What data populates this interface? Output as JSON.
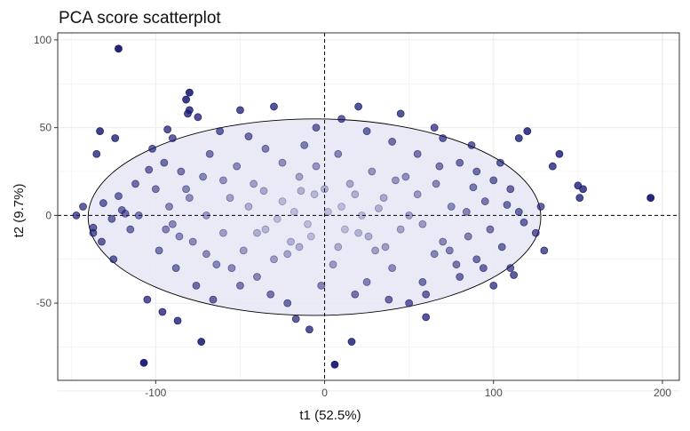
{
  "chart_data": {
    "type": "scatter",
    "title": "PCA score scatterplot",
    "xlabel": "t1 (52.5%)",
    "ylabel": "t2 (9.7%)",
    "xlim": [
      -158,
      210
    ],
    "ylim": [
      -94,
      104
    ],
    "xticks": [
      -100,
      0,
      100,
      200
    ],
    "yticks": [
      -50,
      0,
      50,
      100
    ],
    "xtick_labels": [
      "-100",
      "0",
      "100",
      "200"
    ],
    "ytick_labels": [
      "-50",
      "0",
      "50",
      "100"
    ],
    "grid": true,
    "reference_lines": {
      "x": 0,
      "y": 0,
      "style": "dashed"
    },
    "ellipse": {
      "cx": -6,
      "cy": -1,
      "rx": 134,
      "ry": 56
    },
    "point_color": "#191970",
    "ellipse_fill": "#e6e6f5",
    "grid_color": "#ebebeb",
    "points": [
      [
        -122,
        95
      ],
      [
        -133,
        48
      ],
      [
        -124,
        44
      ],
      [
        -135,
        35
      ],
      [
        -143,
        5
      ],
      [
        -147,
        0
      ],
      [
        -137,
        -7
      ],
      [
        -137,
        -10
      ],
      [
        -132,
        -15
      ],
      [
        -131,
        7
      ],
      [
        -122,
        11
      ],
      [
        -120,
        3
      ],
      [
        -118,
        1
      ],
      [
        -126,
        -2
      ],
      [
        -93,
        49
      ],
      [
        -82,
        66
      ],
      [
        -80,
        70
      ],
      [
        -81,
        58
      ],
      [
        -80,
        60
      ],
      [
        -90,
        44
      ],
      [
        -105,
        -48
      ],
      [
        -96,
        -55
      ],
      [
        -107,
        -84
      ],
      [
        -73,
        -72
      ],
      [
        -17,
        -59
      ],
      [
        -9,
        -65
      ],
      [
        16,
        -72
      ],
      [
        6,
        -85
      ],
      [
        -95,
        30
      ],
      [
        -85,
        25
      ],
      [
        -80,
        10
      ],
      [
        -90,
        -5
      ],
      [
        -78,
        -15
      ],
      [
        -70,
        -22
      ],
      [
        -60,
        20
      ],
      [
        -55,
        -30
      ],
      [
        -68,
        35
      ],
      [
        -92,
        5
      ],
      [
        -100,
        15
      ],
      [
        -86,
        -12
      ],
      [
        -62,
        48
      ],
      [
        -75,
        56
      ],
      [
        -45,
        45
      ],
      [
        -35,
        38
      ],
      [
        -25,
        30
      ],
      [
        -15,
        22
      ],
      [
        -5,
        50
      ],
      [
        10,
        55
      ],
      [
        25,
        48
      ],
      [
        40,
        42
      ],
      [
        55,
        35
      ],
      [
        70,
        44
      ],
      [
        80,
        30
      ],
      [
        90,
        25
      ],
      [
        100,
        20
      ],
      [
        110,
        15
      ],
      [
        115,
        44
      ],
      [
        120,
        48
      ],
      [
        125,
        -10
      ],
      [
        110,
        -30
      ],
      [
        100,
        -40
      ],
      [
        90,
        -25
      ],
      [
        80,
        -35
      ],
      [
        70,
        -15
      ],
      [
        60,
        -45
      ],
      [
        50,
        -50
      ],
      [
        40,
        -30
      ],
      [
        30,
        -20
      ],
      [
        20,
        -10
      ],
      [
        10,
        5
      ],
      [
        0,
        15
      ],
      [
        -10,
        -5
      ],
      [
        -20,
        -15
      ],
      [
        -30,
        -25
      ],
      [
        -40,
        -35
      ],
      [
        -50,
        -40
      ],
      [
        -60,
        -10
      ],
      [
        -70,
        0
      ],
      [
        -45,
        5
      ],
      [
        -35,
        -8
      ],
      [
        -25,
        8
      ],
      [
        -15,
        -18
      ],
      [
        -5,
        28
      ],
      [
        5,
        -28
      ],
      [
        15,
        18
      ],
      [
        25,
        -38
      ],
      [
        35,
        10
      ],
      [
        45,
        -8
      ],
      [
        55,
        12
      ],
      [
        65,
        -22
      ],
      [
        75,
        5
      ],
      [
        85,
        -12
      ],
      [
        95,
        8
      ],
      [
        105,
        -18
      ],
      [
        115,
        2
      ],
      [
        -110,
        0
      ],
      [
        -115,
        -8
      ],
      [
        -104,
        26
      ],
      [
        -112,
        18
      ],
      [
        -98,
        -20
      ],
      [
        -88,
        -30
      ],
      [
        -76,
        -40
      ],
      [
        -66,
        -48
      ],
      [
        -52,
        28
      ],
      [
        -42,
        18
      ],
      [
        -32,
        -45
      ],
      [
        -22,
        -50
      ],
      [
        -12,
        40
      ],
      [
        -2,
        -40
      ],
      [
        8,
        35
      ],
      [
        18,
        -45
      ],
      [
        28,
        25
      ],
      [
        38,
        -48
      ],
      [
        48,
        22
      ],
      [
        58,
        -38
      ],
      [
        68,
        28
      ],
      [
        78,
        -28
      ],
      [
        88,
        16
      ],
      [
        98,
        -8
      ],
      [
        108,
        6
      ],
      [
        118,
        -4
      ],
      [
        128,
        5
      ],
      [
        130,
        -20
      ],
      [
        -125,
        -25
      ],
      [
        -50,
        60
      ],
      [
        -30,
        62
      ],
      [
        20,
        62
      ],
      [
        45,
        58
      ],
      [
        65,
        50
      ],
      [
        87,
        40
      ],
      [
        -87,
        -60
      ],
      [
        60,
        -58
      ],
      [
        -8,
        -12
      ],
      [
        12,
        -8
      ],
      [
        -18,
        2
      ],
      [
        22,
        0
      ],
      [
        -28,
        -2
      ],
      [
        32,
        4
      ],
      [
        2,
        2
      ],
      [
        -6,
        12
      ],
      [
        8,
        -18
      ],
      [
        -14,
        14
      ],
      [
        18,
        12
      ],
      [
        -22,
        -22
      ],
      [
        26,
        -12
      ],
      [
        -36,
        14
      ],
      [
        36,
        -18
      ],
      [
        -40,
        -10
      ],
      [
        42,
        20
      ],
      [
        -48,
        -20
      ],
      [
        50,
        0
      ],
      [
        -56,
        10
      ],
      [
        58,
        -5
      ],
      [
        -64,
        -28
      ],
      [
        66,
        18
      ],
      [
        -72,
        22
      ],
      [
        74,
        -20
      ],
      [
        -82,
        15
      ],
      [
        84,
        2
      ],
      [
        -94,
        -8
      ],
      [
        94,
        -30
      ],
      [
        104,
        30
      ],
      [
        -102,
        38
      ],
      [
        112,
        -34
      ],
      [
        135,
        28
      ],
      [
        139,
        35
      ],
      [
        150,
        17
      ],
      [
        153,
        15
      ],
      [
        151,
        10
      ],
      [
        193,
        10
      ]
    ]
  }
}
